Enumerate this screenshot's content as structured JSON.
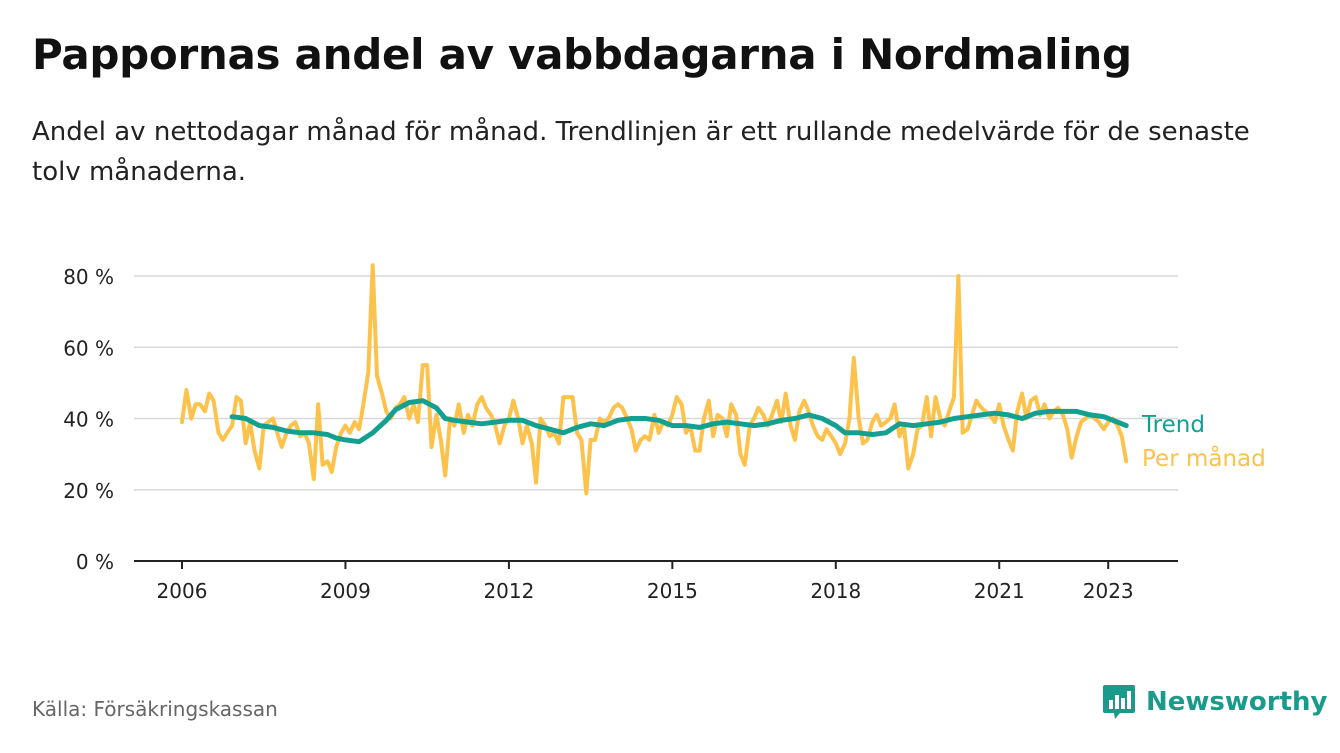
{
  "title": "Pappornas andel av vabbdagarna i Nordmaling",
  "subtitle": "Andel av nettodagar månad för månad. Trendlinjen är ett rullande medelvärde för de senaste tolv månaderna.",
  "source": "Källa: Försäkringskassan",
  "brand": "Newsworthy",
  "colors": {
    "trend": "#14a090",
    "monthly": "#fcc24b",
    "grid": "#d9d9d9",
    "axis": "#222222",
    "brand": "#1a9a8a"
  },
  "chart_data": {
    "type": "line",
    "x_unit": "year",
    "xlim": [
      2006,
      2023.4
    ],
    "ylim": [
      0,
      80
    ],
    "x_ticks": [
      2006,
      2009,
      2012,
      2015,
      2018,
      2021,
      2023
    ],
    "x_tick_labels": [
      "2006",
      "2009",
      "2012",
      "2015",
      "2018",
      "2021",
      "2023"
    ],
    "y_ticks": [
      0,
      20,
      40,
      60,
      80
    ],
    "y_tick_labels": [
      "0 %",
      "20 %",
      "40 %",
      "60 %",
      "80 %"
    ],
    "grid": "horizontal",
    "legend": "direct labels at line ends",
    "series": [
      {
        "name": "Per månad",
        "key": "monthly",
        "points": [
          [
            2006.0,
            39
          ],
          [
            2006.08,
            48
          ],
          [
            2006.17,
            40
          ],
          [
            2006.25,
            44
          ],
          [
            2006.33,
            44
          ],
          [
            2006.42,
            42
          ],
          [
            2006.5,
            47
          ],
          [
            2006.58,
            45
          ],
          [
            2006.67,
            36
          ],
          [
            2006.75,
            34
          ],
          [
            2006.83,
            36
          ],
          [
            2006.92,
            38
          ],
          [
            2007.0,
            46
          ],
          [
            2007.08,
            45
          ],
          [
            2007.17,
            33
          ],
          [
            2007.25,
            39
          ],
          [
            2007.33,
            31
          ],
          [
            2007.42,
            26
          ],
          [
            2007.5,
            38
          ],
          [
            2007.58,
            39
          ],
          [
            2007.67,
            40
          ],
          [
            2007.75,
            36
          ],
          [
            2007.83,
            32
          ],
          [
            2007.92,
            36
          ],
          [
            2008.0,
            38
          ],
          [
            2008.08,
            39
          ],
          [
            2008.17,
            35
          ],
          [
            2008.25,
            36
          ],
          [
            2008.33,
            33
          ],
          [
            2008.42,
            23
          ],
          [
            2008.5,
            44
          ],
          [
            2008.58,
            27
          ],
          [
            2008.67,
            28
          ],
          [
            2008.75,
            25
          ],
          [
            2008.83,
            32
          ],
          [
            2008.92,
            36
          ],
          [
            2009.0,
            38
          ],
          [
            2009.08,
            36
          ],
          [
            2009.17,
            39
          ],
          [
            2009.25,
            37
          ],
          [
            2009.33,
            44
          ],
          [
            2009.42,
            53
          ],
          [
            2009.5,
            83
          ],
          [
            2009.58,
            52
          ],
          [
            2009.67,
            47
          ],
          [
            2009.75,
            42
          ],
          [
            2009.83,
            40
          ],
          [
            2009.92,
            43
          ],
          [
            2010.0,
            44
          ],
          [
            2010.08,
            46
          ],
          [
            2010.17,
            40
          ],
          [
            2010.25,
            44
          ],
          [
            2010.33,
            39
          ],
          [
            2010.42,
            55
          ],
          [
            2010.5,
            55
          ],
          [
            2010.58,
            32
          ],
          [
            2010.67,
            41
          ],
          [
            2010.75,
            34
          ],
          [
            2010.83,
            24
          ],
          [
            2010.92,
            40
          ],
          [
            2011.0,
            38
          ],
          [
            2011.08,
            44
          ],
          [
            2011.17,
            36
          ],
          [
            2011.25,
            41
          ],
          [
            2011.33,
            38
          ],
          [
            2011.42,
            44
          ],
          [
            2011.5,
            46
          ],
          [
            2011.58,
            43
          ],
          [
            2011.67,
            41
          ],
          [
            2011.75,
            38
          ],
          [
            2011.83,
            33
          ],
          [
            2011.92,
            38
          ],
          [
            2012.0,
            40
          ],
          [
            2012.08,
            45
          ],
          [
            2012.17,
            40
          ],
          [
            2012.25,
            33
          ],
          [
            2012.33,
            38
          ],
          [
            2012.42,
            33
          ],
          [
            2012.5,
            22
          ],
          [
            2012.58,
            40
          ],
          [
            2012.67,
            38
          ],
          [
            2012.75,
            35
          ],
          [
            2012.83,
            36
          ],
          [
            2012.92,
            33
          ],
          [
            2013.0,
            46
          ],
          [
            2013.08,
            46
          ],
          [
            2013.17,
            46
          ],
          [
            2013.25,
            36
          ],
          [
            2013.33,
            34
          ],
          [
            2013.42,
            19
          ],
          [
            2013.5,
            34
          ],
          [
            2013.58,
            34
          ],
          [
            2013.67,
            40
          ],
          [
            2013.75,
            39
          ],
          [
            2013.83,
            40
          ],
          [
            2013.92,
            43
          ],
          [
            2014.0,
            44
          ],
          [
            2014.08,
            43
          ],
          [
            2014.17,
            40
          ],
          [
            2014.25,
            37
          ],
          [
            2014.33,
            31
          ],
          [
            2014.42,
            34
          ],
          [
            2014.5,
            35
          ],
          [
            2014.58,
            34
          ],
          [
            2014.67,
            41
          ],
          [
            2014.75,
            36
          ],
          [
            2014.83,
            39
          ],
          [
            2014.92,
            38
          ],
          [
            2015.0,
            41
          ],
          [
            2015.08,
            46
          ],
          [
            2015.17,
            44
          ],
          [
            2015.25,
            36
          ],
          [
            2015.33,
            38
          ],
          [
            2015.42,
            31
          ],
          [
            2015.5,
            31
          ],
          [
            2015.58,
            40
          ],
          [
            2015.67,
            45
          ],
          [
            2015.75,
            35
          ],
          [
            2015.83,
            41
          ],
          [
            2015.92,
            40
          ],
          [
            2016.0,
            35
          ],
          [
            2016.08,
            44
          ],
          [
            2016.17,
            41
          ],
          [
            2016.25,
            30
          ],
          [
            2016.33,
            27
          ],
          [
            2016.42,
            38
          ],
          [
            2016.5,
            40
          ],
          [
            2016.58,
            43
          ],
          [
            2016.67,
            41
          ],
          [
            2016.75,
            38
          ],
          [
            2016.83,
            41
          ],
          [
            2016.92,
            45
          ],
          [
            2017.0,
            39
          ],
          [
            2017.08,
            47
          ],
          [
            2017.17,
            38
          ],
          [
            2017.25,
            34
          ],
          [
            2017.33,
            42
          ],
          [
            2017.42,
            45
          ],
          [
            2017.5,
            42
          ],
          [
            2017.58,
            38
          ],
          [
            2017.67,
            35
          ],
          [
            2017.75,
            34
          ],
          [
            2017.83,
            37
          ],
          [
            2017.92,
            35
          ],
          [
            2018.0,
            33
          ],
          [
            2018.08,
            30
          ],
          [
            2018.17,
            33
          ],
          [
            2018.25,
            40
          ],
          [
            2018.33,
            57
          ],
          [
            2018.42,
            40
          ],
          [
            2018.5,
            33
          ],
          [
            2018.58,
            34
          ],
          [
            2018.67,
            39
          ],
          [
            2018.75,
            41
          ],
          [
            2018.83,
            38
          ],
          [
            2018.92,
            39
          ],
          [
            2019.0,
            40
          ],
          [
            2019.08,
            44
          ],
          [
            2019.17,
            35
          ],
          [
            2019.25,
            38
          ],
          [
            2019.33,
            26
          ],
          [
            2019.42,
            30
          ],
          [
            2019.5,
            37
          ],
          [
            2019.58,
            38
          ],
          [
            2019.67,
            46
          ],
          [
            2019.75,
            35
          ],
          [
            2019.83,
            46
          ],
          [
            2019.92,
            40
          ],
          [
            2020.0,
            38
          ],
          [
            2020.08,
            42
          ],
          [
            2020.17,
            46
          ],
          [
            2020.25,
            80
          ],
          [
            2020.33,
            36
          ],
          [
            2020.42,
            37
          ],
          [
            2020.5,
            41
          ],
          [
            2020.58,
            45
          ],
          [
            2020.67,
            43
          ],
          [
            2020.75,
            42
          ],
          [
            2020.83,
            41
          ],
          [
            2020.92,
            39
          ],
          [
            2021.0,
            44
          ],
          [
            2021.08,
            38
          ],
          [
            2021.17,
            34
          ],
          [
            2021.25,
            31
          ],
          [
            2021.33,
            42
          ],
          [
            2021.42,
            47
          ],
          [
            2021.5,
            40
          ],
          [
            2021.58,
            45
          ],
          [
            2021.67,
            46
          ],
          [
            2021.75,
            41
          ],
          [
            2021.83,
            44
          ],
          [
            2021.92,
            40
          ],
          [
            2022.0,
            42
          ],
          [
            2022.08,
            43
          ],
          [
            2022.17,
            41
          ],
          [
            2022.25,
            37
          ],
          [
            2022.33,
            29
          ],
          [
            2022.42,
            35
          ],
          [
            2022.5,
            39
          ],
          [
            2022.58,
            40
          ],
          [
            2022.67,
            41
          ],
          [
            2022.75,
            40
          ],
          [
            2022.83,
            39
          ],
          [
            2022.92,
            37
          ],
          [
            2023.0,
            39
          ],
          [
            2023.08,
            40
          ],
          [
            2023.17,
            38
          ],
          [
            2023.25,
            35
          ],
          [
            2023.33,
            28
          ]
        ]
      },
      {
        "name": "Trend",
        "key": "trend",
        "points": [
          [
            2006.92,
            40.5
          ],
          [
            2007.17,
            40
          ],
          [
            2007.42,
            38
          ],
          [
            2007.67,
            37.5
          ],
          [
            2007.92,
            36.5
          ],
          [
            2008.17,
            36
          ],
          [
            2008.42,
            36
          ],
          [
            2008.67,
            35.5
          ],
          [
            2008.83,
            34.5
          ],
          [
            2009.0,
            34
          ],
          [
            2009.25,
            33.5
          ],
          [
            2009.5,
            36
          ],
          [
            2009.75,
            39.5
          ],
          [
            2009.92,
            42.5
          ],
          [
            2010.17,
            44.5
          ],
          [
            2010.42,
            45
          ],
          [
            2010.67,
            43
          ],
          [
            2010.83,
            40
          ],
          [
            2011.0,
            39.5
          ],
          [
            2011.25,
            39
          ],
          [
            2011.5,
            38.5
          ],
          [
            2011.75,
            39
          ],
          [
            2012.0,
            39.5
          ],
          [
            2012.25,
            39.5
          ],
          [
            2012.5,
            38
          ],
          [
            2012.75,
            37
          ],
          [
            2013.0,
            36
          ],
          [
            2013.25,
            37.5
          ],
          [
            2013.5,
            38.5
          ],
          [
            2013.75,
            38
          ],
          [
            2014.0,
            39.5
          ],
          [
            2014.25,
            40
          ],
          [
            2014.5,
            40
          ],
          [
            2014.75,
            39.5
          ],
          [
            2015.0,
            38
          ],
          [
            2015.25,
            38
          ],
          [
            2015.5,
            37.5
          ],
          [
            2015.75,
            38.5
          ],
          [
            2016.0,
            39
          ],
          [
            2016.25,
            38.5
          ],
          [
            2016.5,
            38
          ],
          [
            2016.75,
            38.5
          ],
          [
            2017.0,
            39.5
          ],
          [
            2017.25,
            40
          ],
          [
            2017.5,
            41
          ],
          [
            2017.75,
            40
          ],
          [
            2018.0,
            38
          ],
          [
            2018.17,
            36
          ],
          [
            2018.42,
            36
          ],
          [
            2018.67,
            35.5
          ],
          [
            2018.92,
            36
          ],
          [
            2019.17,
            38.5
          ],
          [
            2019.42,
            38
          ],
          [
            2019.67,
            38.5
          ],
          [
            2019.92,
            39
          ],
          [
            2020.17,
            40
          ],
          [
            2020.42,
            40.5
          ],
          [
            2020.67,
            41
          ],
          [
            2020.92,
            41.5
          ],
          [
            2021.17,
            41
          ],
          [
            2021.42,
            40
          ],
          [
            2021.67,
            41.5
          ],
          [
            2021.92,
            42
          ],
          [
            2022.17,
            42
          ],
          [
            2022.42,
            42
          ],
          [
            2022.67,
            41
          ],
          [
            2022.92,
            40.5
          ],
          [
            2023.17,
            39
          ],
          [
            2023.33,
            38
          ]
        ]
      }
    ]
  }
}
